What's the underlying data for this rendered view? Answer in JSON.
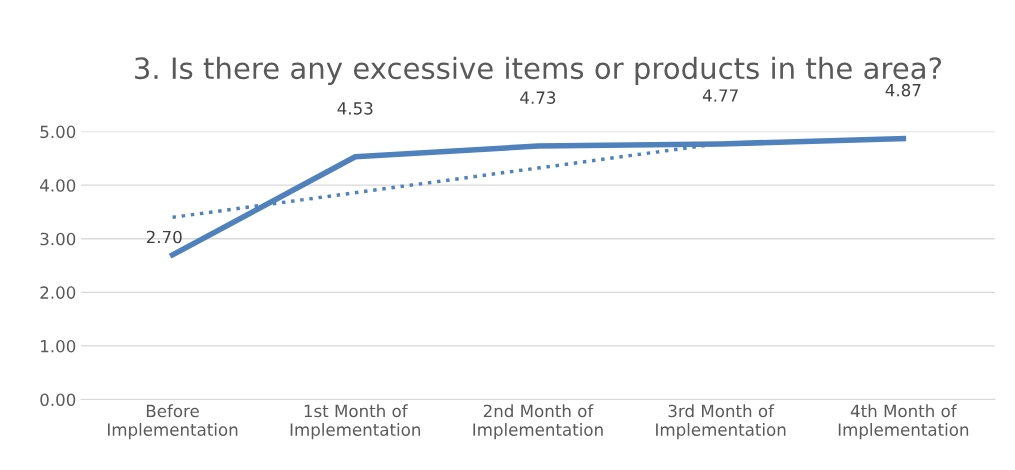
{
  "chart_data": {
    "type": "line",
    "title": "3. Is there any excessive items or products in the area?",
    "categories": [
      "Before\nImplementation",
      "1st Month of\nImplementation",
      "2nd Month of\nImplementation",
      "3rd Month of\nImplementation",
      "4th Month of\nImplementation"
    ],
    "series": [
      {
        "color": "#4f81bd",
        "values": [
          2.7,
          4.53,
          4.73,
          4.77,
          4.87
        ],
        "value_labels": [
          "2.70",
          "4.53",
          "4.73",
          "4.77",
          "4.87"
        ],
        "line_style": "solid"
      },
      {
        "type": "line",
        "color": "#4f81bd",
        "values": [
          3.4,
          3.86,
          4.32,
          4.78,
          null
        ],
        "line_style": "dotted"
      }
    ],
    "ylim": [
      0,
      5
    ],
    "yticks": [
      {
        "value": 0,
        "label": "0.00"
      },
      {
        "value": 1,
        "label": "1.00"
      },
      {
        "value": 2,
        "label": "2.00"
      },
      {
        "value": 3,
        "label": "3.00"
      },
      {
        "value": 4,
        "label": "4.00"
      },
      {
        "value": 5,
        "label": "5.00"
      }
    ],
    "grid": "y",
    "legend": false,
    "marker": "none"
  }
}
